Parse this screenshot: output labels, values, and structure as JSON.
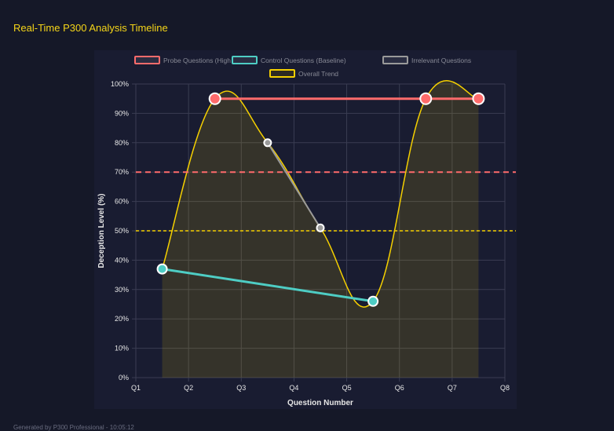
{
  "title": "Real-Time P300 Analysis Timeline",
  "footer": "Generated by P300 Professional - 10:05:12",
  "chart_data": {
    "type": "line",
    "xlabel": "Question Number",
    "ylabel": "Deception Level (%)",
    "x_ticks": [
      "Q1",
      "Q2",
      "Q3",
      "Q4",
      "Q5",
      "Q6",
      "Q7",
      "Q8"
    ],
    "y_ticks": [
      "0%",
      "10%",
      "20%",
      "30%",
      "40%",
      "50%",
      "60%",
      "70%",
      "80%",
      "90%",
      "100%"
    ],
    "ylim": [
      0,
      100
    ],
    "grid": true,
    "legend_position": "top",
    "series": [
      {
        "name": "Probe Questions (High Risk)",
        "color": "#ff6b6b",
        "points": [
          [
            2.5,
            95
          ],
          [
            6.5,
            95
          ],
          [
            7.5,
            95
          ]
        ]
      },
      {
        "name": "Control Questions (Baseline)",
        "color": "#4ecdc4",
        "points": [
          [
            1.5,
            37
          ],
          [
            5.5,
            26
          ]
        ]
      },
      {
        "name": "Irrelevant Questions",
        "color": "#9a9a9a",
        "points": [
          [
            3.5,
            80
          ],
          [
            4.5,
            51
          ]
        ]
      },
      {
        "name": "Overall Trend",
        "color": "#f5d000",
        "fill": true,
        "points": [
          [
            1.5,
            37
          ],
          [
            2.5,
            95
          ],
          [
            3.5,
            80
          ],
          [
            4.5,
            51
          ],
          [
            5.5,
            26
          ],
          [
            6.5,
            95
          ],
          [
            7.5,
            95
          ]
        ]
      }
    ],
    "thresholds": [
      {
        "value": 70,
        "color": "#ff6b6b"
      },
      {
        "value": 50,
        "color": "#f5d000"
      }
    ]
  }
}
